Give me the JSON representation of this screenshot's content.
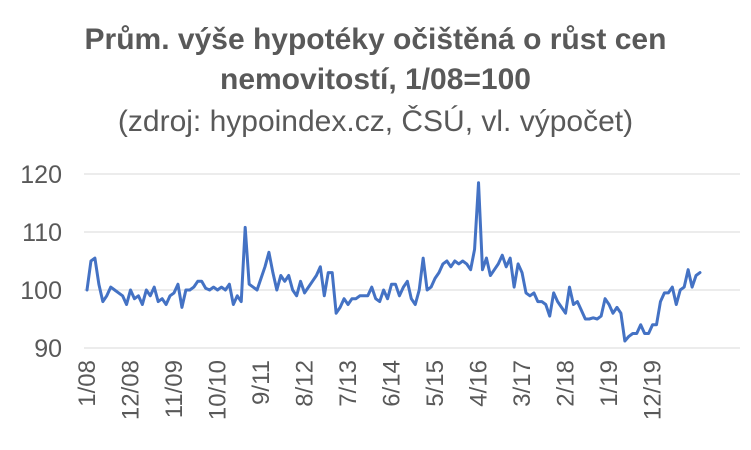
{
  "chart_data": {
    "type": "line",
    "title": "Prům. výše hypotéky očištěná o růst cen nemovitostí, 1/08=100",
    "title_lines": [
      "Prům. výše hypotéky očištěná o růst cen",
      "nemovitostí, 1/08=100"
    ],
    "subtitle": "(zdroj: hypoindex.cz, ČSÚ, vl. výpočet)",
    "xlabel": "",
    "ylabel": "",
    "ylim": [
      90,
      120
    ],
    "yticks": [
      "90",
      "100",
      "110",
      "120"
    ],
    "x_tick_labels": [
      "1/08",
      "12/08",
      "11/09",
      "10/10",
      "9/11",
      "8/12",
      "7/13",
      "6/14",
      "5/15",
      "4/16",
      "3/17",
      "2/18",
      "1/19",
      "12/19"
    ],
    "x_tick_months": [
      "2008-01",
      "2008-12",
      "2009-11",
      "2010-10",
      "2011-09",
      "2012-08",
      "2013-07",
      "2014-06",
      "2015-05",
      "2016-04",
      "2017-03",
      "2018-02",
      "2019-01",
      "2019-12"
    ],
    "x_start": "2008-01",
    "grid": true,
    "legend": "none",
    "line_color": "#4472C4",
    "series": [
      {
        "values": [
          100,
          105,
          105.5,
          101,
          98,
          99,
          100.5,
          100,
          99.5,
          99,
          97.5,
          100,
          98.5,
          99,
          97.5,
          100,
          99,
          100.5,
          98,
          98.5,
          97.5,
          99,
          99.5,
          101,
          97,
          100,
          100,
          100.5,
          101.5,
          101.5,
          100.3,
          100,
          100.5,
          100,
          100.5,
          100,
          101,
          97.5,
          99,
          98,
          110.8,
          101,
          100.5,
          100,
          102,
          104,
          106.5,
          103,
          100,
          102.5,
          101.5,
          102.5,
          100,
          99,
          101.5,
          99.5,
          100.5,
          101.5,
          102.5,
          104,
          99,
          103,
          103,
          96,
          97,
          98.5,
          97.5,
          98.5,
          98.5,
          99,
          99,
          99,
          100.5,
          98.5,
          98,
          100,
          98.5,
          101,
          101,
          99,
          100.5,
          101.5,
          98.5,
          97.5,
          100,
          105.5,
          100,
          100.5,
          102,
          103,
          104.5,
          105,
          104,
          105,
          104.5,
          105,
          104.5,
          103.5,
          107,
          118.5,
          103.5,
          105.5,
          102.5,
          103.5,
          104.5,
          106,
          104,
          105.5,
          100.5,
          104.5,
          103,
          99.5,
          99,
          99.5,
          98,
          98,
          97.5,
          95.5,
          99.5,
          98,
          97,
          96,
          100.5,
          97.5,
          98,
          96.5,
          95,
          95,
          95.2,
          95,
          95.5,
          98.5,
          97.5,
          96,
          97,
          96,
          91.2,
          92,
          92.5,
          92.5,
          94,
          92.5,
          92.5,
          94,
          94,
          98,
          99.5,
          99.5,
          100.5,
          97.5,
          100,
          100.5,
          103.5,
          100.5,
          102.5,
          103
        ]
      }
    ]
  }
}
